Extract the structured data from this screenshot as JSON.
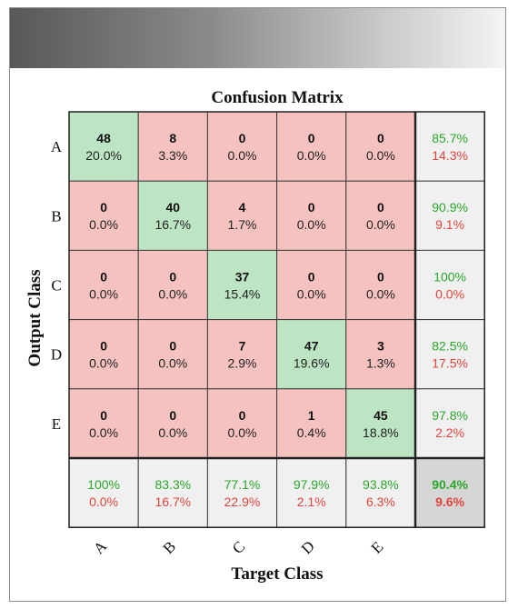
{
  "chart_data": {
    "type": "heatmap",
    "title": "Confusion Matrix",
    "xlabel": "Target Class",
    "ylabel": "Output Class",
    "classes": [
      "A",
      "B",
      "C",
      "D",
      "E"
    ],
    "cells": [
      [
        {
          "count": "48",
          "pct": "20.0%"
        },
        {
          "count": "8",
          "pct": "3.3%"
        },
        {
          "count": "0",
          "pct": "0.0%"
        },
        {
          "count": "0",
          "pct": "0.0%"
        },
        {
          "count": "0",
          "pct": "0.0%"
        }
      ],
      [
        {
          "count": "0",
          "pct": "0.0%"
        },
        {
          "count": "40",
          "pct": "16.7%"
        },
        {
          "count": "4",
          "pct": "1.7%"
        },
        {
          "count": "0",
          "pct": "0.0%"
        },
        {
          "count": "0",
          "pct": "0.0%"
        }
      ],
      [
        {
          "count": "0",
          "pct": "0.0%"
        },
        {
          "count": "0",
          "pct": "0.0%"
        },
        {
          "count": "37",
          "pct": "15.4%"
        },
        {
          "count": "0",
          "pct": "0.0%"
        },
        {
          "count": "0",
          "pct": "0.0%"
        }
      ],
      [
        {
          "count": "0",
          "pct": "0.0%"
        },
        {
          "count": "0",
          "pct": "0.0%"
        },
        {
          "count": "7",
          "pct": "2.9%"
        },
        {
          "count": "47",
          "pct": "19.6%"
        },
        {
          "count": "3",
          "pct": "1.3%"
        }
      ],
      [
        {
          "count": "0",
          "pct": "0.0%"
        },
        {
          "count": "0",
          "pct": "0.0%"
        },
        {
          "count": "0",
          "pct": "0.0%"
        },
        {
          "count": "1",
          "pct": "0.4%"
        },
        {
          "count": "45",
          "pct": "18.8%"
        }
      ]
    ],
    "row_summary": [
      {
        "correct": "85.7%",
        "wrong": "14.3%"
      },
      {
        "correct": "90.9%",
        "wrong": "9.1%"
      },
      {
        "correct": "100%",
        "wrong": "0.0%"
      },
      {
        "correct": "82.5%",
        "wrong": "17.5%"
      },
      {
        "correct": "97.8%",
        "wrong": "2.2%"
      }
    ],
    "col_summary": [
      {
        "correct": "100%",
        "wrong": "0.0%"
      },
      {
        "correct": "83.3%",
        "wrong": "16.7%"
      },
      {
        "correct": "77.1%",
        "wrong": "22.9%"
      },
      {
        "correct": "97.9%",
        "wrong": "2.1%"
      },
      {
        "correct": "93.8%",
        "wrong": "6.3%"
      }
    ],
    "overall": {
      "correct": "90.4%",
      "wrong": "9.6%"
    }
  },
  "colors": {
    "diagonal": "#bde5c4",
    "off_diagonal": "#f6c2c0",
    "summary": "#f0f0f0",
    "overall": "#d6d6d6",
    "correct_text": "#2aa82a",
    "wrong_text": "#e2453c",
    "grid": "#3c3c3c"
  }
}
